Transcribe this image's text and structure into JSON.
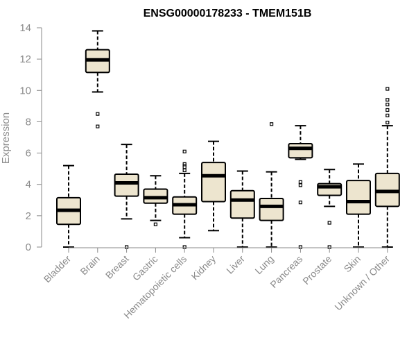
{
  "chart_data": {
    "type": "box",
    "title": "ENSG00000178233 - TMEM151B",
    "ylabel": "Expression",
    "xlabel": "",
    "ylim": [
      0,
      14
    ],
    "yticks": [
      0,
      2,
      4,
      6,
      8,
      10,
      12,
      14
    ],
    "grid": false,
    "colors": {
      "box_fill": "#ede5cf",
      "stroke": "#000000",
      "axis": "#8a8a8a"
    },
    "categories": [
      "Bladder",
      "Brain",
      "Breast",
      "Gastric",
      "Hematopoietic cells",
      "Kidney",
      "Liver",
      "Lung",
      "Pancreas",
      "Prostate",
      "Skin",
      "Unknown / Other"
    ],
    "boxes": [
      {
        "name": "Bladder",
        "whisker_low": 0.0,
        "q1": 1.45,
        "median": 2.35,
        "q3": 3.15,
        "whisker_high": 5.2,
        "outliers": []
      },
      {
        "name": "Brain",
        "whisker_low": 9.9,
        "q1": 11.15,
        "median": 11.95,
        "q3": 12.6,
        "whisker_high": 13.8,
        "outliers": [
          8.5,
          7.7
        ]
      },
      {
        "name": "Breast",
        "whisker_low": 1.8,
        "q1": 3.25,
        "median": 4.1,
        "q3": 4.65,
        "whisker_high": 6.55,
        "outliers": [
          0.0
        ]
      },
      {
        "name": "Gastric",
        "whisker_low": 1.7,
        "q1": 2.8,
        "median": 3.15,
        "q3": 3.7,
        "whisker_high": 4.55,
        "outliers": [
          1.45
        ]
      },
      {
        "name": "Hematopoietic cells",
        "whisker_low": 0.6,
        "q1": 2.1,
        "median": 2.7,
        "q3": 3.2,
        "whisker_high": 4.7,
        "outliers": [
          6.1,
          5.3,
          5.2,
          5.1,
          4.9,
          0.0
        ]
      },
      {
        "name": "Kidney",
        "whisker_low": 1.05,
        "q1": 2.9,
        "median": 4.55,
        "q3": 5.4,
        "whisker_high": 6.75,
        "outliers": []
      },
      {
        "name": "Liver",
        "whisker_low": 0.0,
        "q1": 1.85,
        "median": 3.0,
        "q3": 3.6,
        "whisker_high": 4.85,
        "outliers": []
      },
      {
        "name": "Lung",
        "whisker_low": 0.0,
        "q1": 1.7,
        "median": 2.6,
        "q3": 3.1,
        "whisker_high": 4.8,
        "outliers": [
          7.85
        ]
      },
      {
        "name": "Pancreas",
        "whisker_low": 5.6,
        "q1": 5.7,
        "median": 6.3,
        "q3": 6.6,
        "whisker_high": 7.75,
        "outliers": [
          4.15,
          3.95,
          2.85,
          0.0
        ]
      },
      {
        "name": "Prostate",
        "whisker_low": 2.6,
        "q1": 3.3,
        "median": 3.85,
        "q3": 4.05,
        "whisker_high": 4.95,
        "outliers": [
          1.55,
          0.0
        ]
      },
      {
        "name": "Skin",
        "whisker_low": 0.0,
        "q1": 2.1,
        "median": 2.9,
        "q3": 4.25,
        "whisker_high": 5.3,
        "outliers": []
      },
      {
        "name": "Unknown / Other",
        "whisker_low": 0.0,
        "q1": 2.6,
        "median": 3.55,
        "q3": 4.7,
        "whisker_high": 7.75,
        "outliers": [
          10.1,
          9.4,
          9.1,
          8.75,
          8.4,
          7.95
        ]
      }
    ]
  }
}
